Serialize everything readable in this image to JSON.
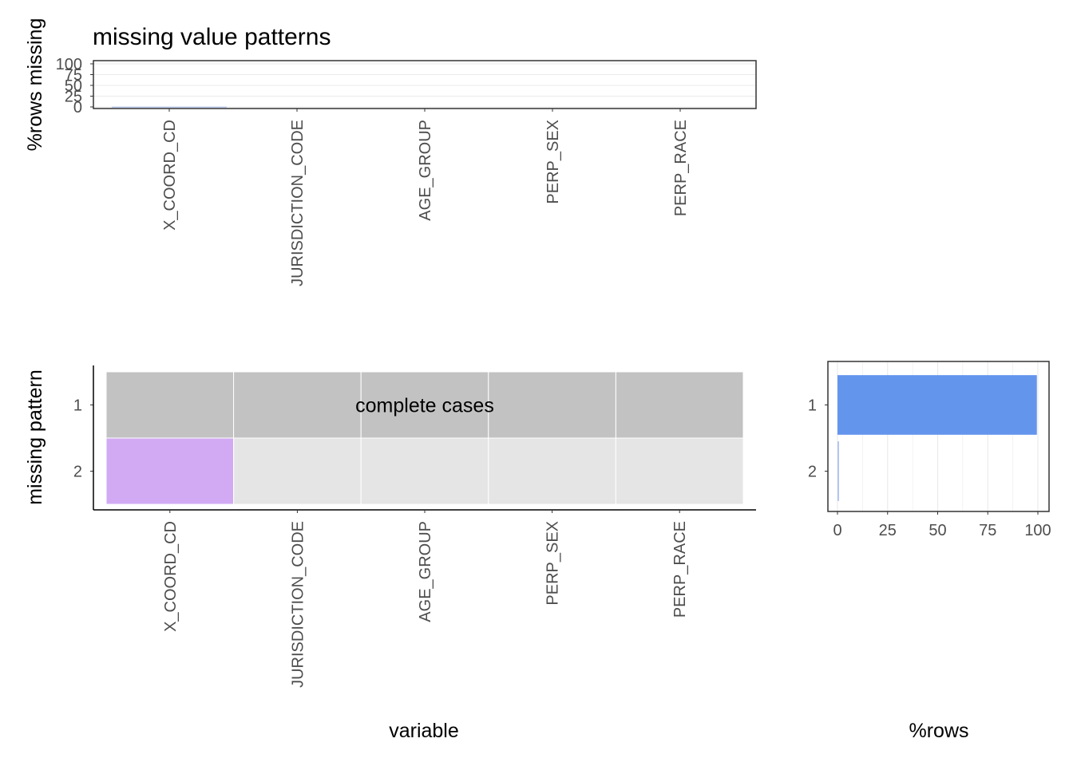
{
  "chart_data": [
    {
      "type": "bar",
      "panel": "top",
      "title": "missing value patterns",
      "ylabel": "%rows missing",
      "categories": [
        "X_COORD_CD",
        "JURISDICTION_CODE",
        "AGE_GROUP",
        "PERP_SEX",
        "PERP_RACE"
      ],
      "values": [
        0.5,
        0,
        0,
        0,
        0
      ],
      "ylim": [
        0,
        100
      ],
      "yticks": [
        0,
        25,
        50,
        75,
        100
      ],
      "grid": true,
      "colors": {
        "bar": "#9bb5e8"
      }
    },
    {
      "type": "heatmap",
      "panel": "main",
      "xlabel": "variable",
      "ylabel": "missing pattern",
      "columns": [
        "X_COORD_CD",
        "JURISDICTION_CODE",
        "AGE_GROUP",
        "PERP_SEX",
        "PERP_RACE"
      ],
      "rows": [
        "1",
        "2"
      ],
      "cells": [
        [
          "present",
          "present",
          "present",
          "present",
          "present"
        ],
        [
          "missing",
          "present",
          "present",
          "present",
          "present"
        ]
      ],
      "row_annotation": {
        "row": "1",
        "text": "complete cases"
      },
      "colors": {
        "complete_row": "#c2c2c2",
        "present": "#e5e5e5",
        "missing": "#d2aaf3"
      }
    },
    {
      "type": "bar",
      "panel": "right",
      "orientation": "horizontal",
      "xlabel": "%rows",
      "categories": [
        "1",
        "2"
      ],
      "values": [
        99.5,
        0.5
      ],
      "xlim": [
        0,
        100
      ],
      "xticks": [
        0,
        25,
        50,
        75,
        100
      ],
      "grid": true,
      "colors": {
        "complete": "#6495ed",
        "other": "#b3c7f2"
      }
    }
  ]
}
